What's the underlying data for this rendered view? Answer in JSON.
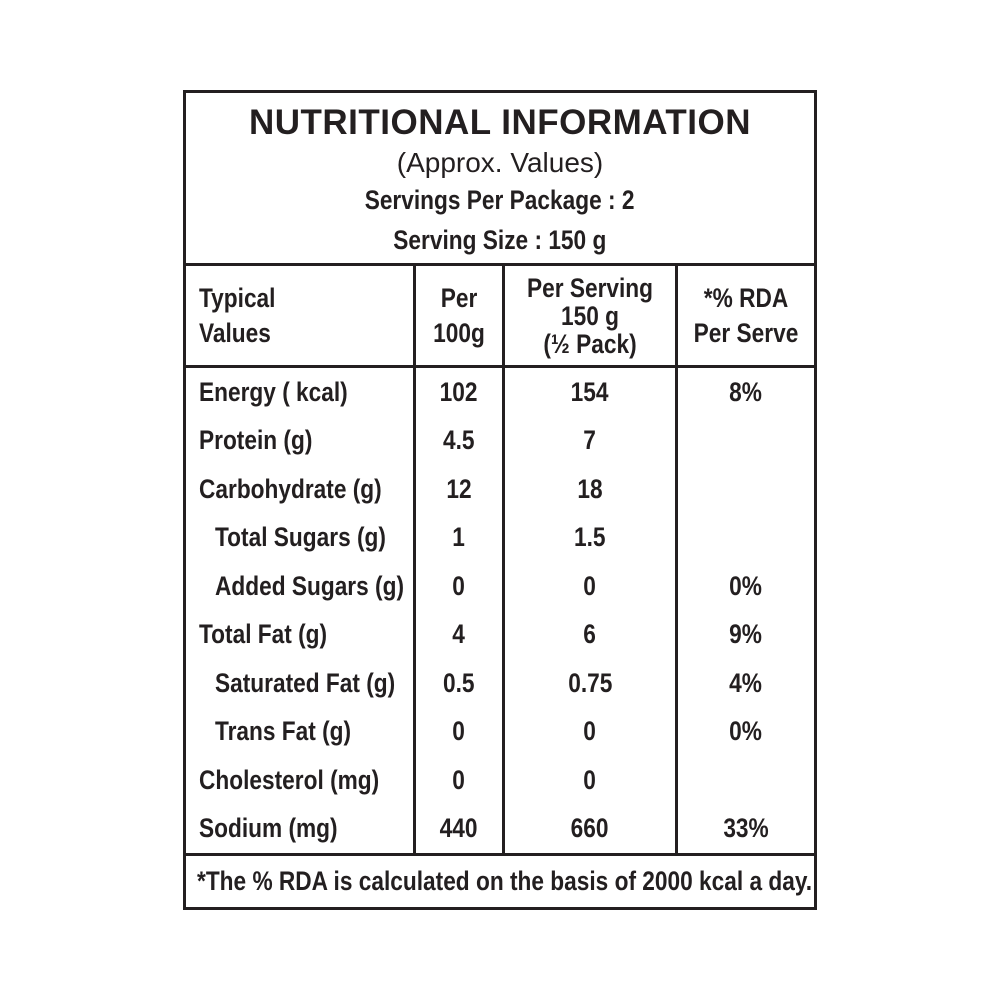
{
  "header": {
    "title": "NUTRITIONAL INFORMATION",
    "subtitle": "(Approx. Values)",
    "servings_per_package": "Servings Per Package : 2",
    "serving_size": "Serving Size : 150 g"
  },
  "columns": [
    {
      "id": "typical-values",
      "lines": [
        "Typical",
        "Values"
      ]
    },
    {
      "id": "per-100g",
      "lines": [
        "Per",
        "100g"
      ]
    },
    {
      "id": "per-serving",
      "lines": [
        "Per Serving",
        "150 g",
        "(½ Pack)"
      ]
    },
    {
      "id": "rda-per-serve",
      "lines": [
        "*% RDA",
        "Per Serve"
      ]
    }
  ],
  "rows": [
    {
      "label": "Energy ( kcal)",
      "indent": false,
      "per_100g": "102",
      "per_serving": "154",
      "rda": "8%"
    },
    {
      "label": "Protein (g)",
      "indent": false,
      "per_100g": "4.5",
      "per_serving": "7",
      "rda": ""
    },
    {
      "label": "Carbohydrate (g)",
      "indent": false,
      "per_100g": "12",
      "per_serving": "18",
      "rda": ""
    },
    {
      "label": "Total Sugars (g)",
      "indent": true,
      "per_100g": "1",
      "per_serving": "1.5",
      "rda": ""
    },
    {
      "label": "Added Sugars (g)",
      "indent": true,
      "per_100g": "0",
      "per_serving": "0",
      "rda": "0%"
    },
    {
      "label": "Total Fat (g)",
      "indent": false,
      "per_100g": "4",
      "per_serving": "6",
      "rda": "9%"
    },
    {
      "label": "Saturated Fat (g)",
      "indent": true,
      "per_100g": "0.5",
      "per_serving": "0.75",
      "rda": "4%"
    },
    {
      "label": "Trans Fat (g)",
      "indent": true,
      "per_100g": "0",
      "per_serving": "0",
      "rda": "0%"
    },
    {
      "label": "Cholesterol (mg)",
      "indent": false,
      "per_100g": "0",
      "per_serving": "0",
      "rda": ""
    },
    {
      "label": "Sodium (mg)",
      "indent": false,
      "per_100g": "440",
      "per_serving": "660",
      "rda": "33%"
    }
  ],
  "footnote": "*The % RDA is calculated on the basis of 2000 kcal a day.",
  "colors": {
    "text": "#231f20",
    "border": "#231f20",
    "background": "#ffffff"
  }
}
